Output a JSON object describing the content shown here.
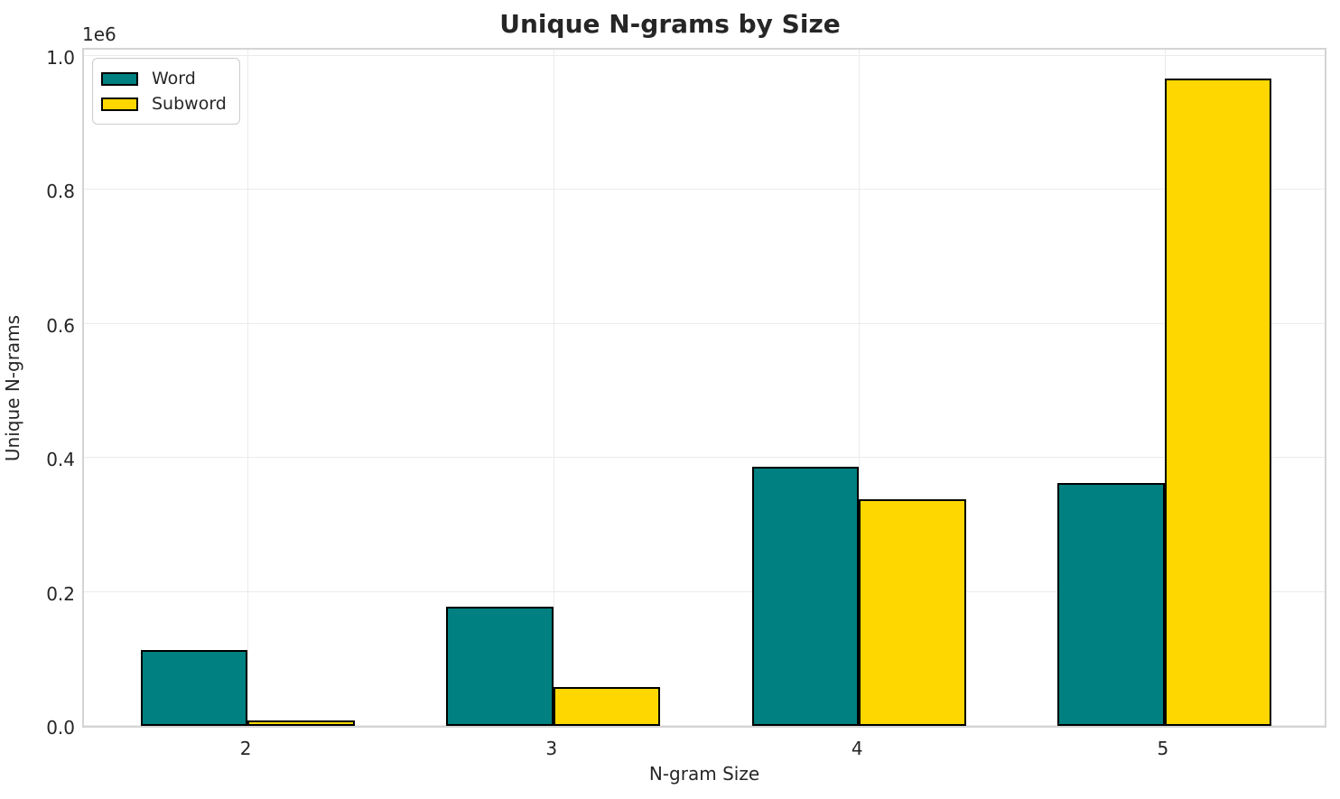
{
  "chart_data": {
    "type": "bar",
    "title": "Unique N-grams by Size",
    "xlabel": "N-gram Size",
    "ylabel": "Unique N-grams",
    "y_offset_text": "1e6",
    "categories": [
      "2",
      "3",
      "4",
      "5"
    ],
    "series": [
      {
        "name": "Word",
        "color": "#008080",
        "values": [
          113000,
          178000,
          387000,
          363000
        ]
      },
      {
        "name": "Subword",
        "color": "#ffd700",
        "values": [
          8000,
          58000,
          338000,
          966000
        ]
      }
    ],
    "y_ticks": [
      {
        "label": "0.0",
        "value": 0
      },
      {
        "label": "0.2",
        "value": 200000
      },
      {
        "label": "0.4",
        "value": 400000
      },
      {
        "label": "0.6",
        "value": 600000
      },
      {
        "label": "0.8",
        "value": 800000
      },
      {
        "label": "1.0",
        "value": 1000000
      }
    ],
    "ylim": [
      0,
      1014300
    ],
    "xlim": [
      -0.535,
      3.535
    ],
    "bar_width": 0.35,
    "bar_edge_color": "#000000",
    "grid": true,
    "legend_position": "upper left",
    "colors": {
      "text": "#262626",
      "spine": "#d4d4d4",
      "grid": "#ebebeb",
      "background": "#ffffff"
    }
  }
}
